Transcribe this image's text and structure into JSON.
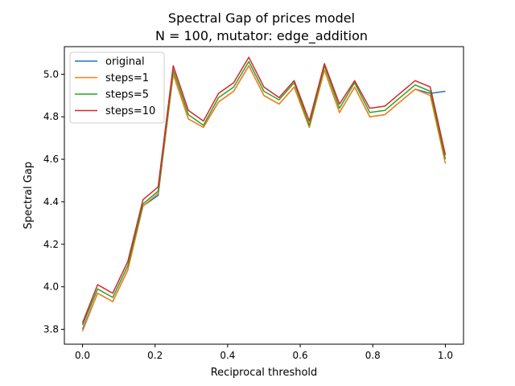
{
  "chart_data": {
    "type": "line",
    "title": "Spectral Gap of prices model",
    "subtitle": "N = 100, mutator: edge_addition",
    "xlabel": "Reciprocal threshold",
    "ylabel": "Spectral Gap",
    "xlim": [
      -0.05,
      1.05
    ],
    "ylim": [
      3.73,
      5.13
    ],
    "xticks": [
      0.0,
      0.2,
      0.4,
      0.6,
      0.8,
      1.0
    ],
    "xtick_labels": [
      "0.0",
      "0.2",
      "0.4",
      "0.6",
      "0.8",
      "1.0"
    ],
    "yticks": [
      3.8,
      4.0,
      4.2,
      4.4,
      4.6,
      4.8,
      5.0
    ],
    "ytick_labels": [
      "3.8",
      "4.0",
      "4.2",
      "4.4",
      "4.6",
      "4.8",
      "5.0"
    ],
    "grid": false,
    "legend_position": "upper-left",
    "x": [
      0.0,
      0.04167,
      0.08333,
      0.125,
      0.16667,
      0.20833,
      0.25,
      0.29167,
      0.33333,
      0.375,
      0.41667,
      0.45833,
      0.5,
      0.54167,
      0.58333,
      0.625,
      0.66667,
      0.70833,
      0.75,
      0.79167,
      0.83333,
      0.875,
      0.91667,
      0.95833,
      1.0
    ],
    "series": [
      {
        "name": "original",
        "color": "#1f77b4",
        "values": [
          3.8,
          3.97,
          3.93,
          4.08,
          4.38,
          4.43,
          5.0,
          4.79,
          4.75,
          4.87,
          4.92,
          5.04,
          4.9,
          4.86,
          4.94,
          4.75,
          5.02,
          4.82,
          4.94,
          4.8,
          4.81,
          4.87,
          4.93,
          4.91,
          4.92
        ]
      },
      {
        "name": "steps=1",
        "color": "#ff7f0e",
        "values": [
          3.79,
          3.97,
          3.93,
          4.08,
          4.38,
          4.44,
          5.0,
          4.79,
          4.75,
          4.87,
          4.92,
          5.04,
          4.9,
          4.86,
          4.94,
          4.75,
          5.02,
          4.82,
          4.94,
          4.8,
          4.81,
          4.87,
          4.93,
          4.9,
          4.58
        ]
      },
      {
        "name": "steps=5",
        "color": "#2ca02c",
        "values": [
          3.82,
          3.99,
          3.95,
          4.1,
          4.39,
          4.45,
          5.02,
          4.81,
          4.76,
          4.89,
          4.94,
          5.06,
          4.92,
          4.88,
          4.96,
          4.76,
          5.04,
          4.84,
          4.96,
          4.82,
          4.83,
          4.89,
          4.95,
          4.92,
          4.6
        ]
      },
      {
        "name": "steps=10",
        "color": "#d62728",
        "values": [
          3.83,
          4.01,
          3.97,
          4.12,
          4.41,
          4.47,
          5.04,
          4.83,
          4.78,
          4.91,
          4.96,
          5.08,
          4.94,
          4.89,
          4.97,
          4.78,
          5.05,
          4.86,
          4.97,
          4.84,
          4.85,
          4.91,
          4.97,
          4.94,
          4.62
        ]
      }
    ]
  }
}
